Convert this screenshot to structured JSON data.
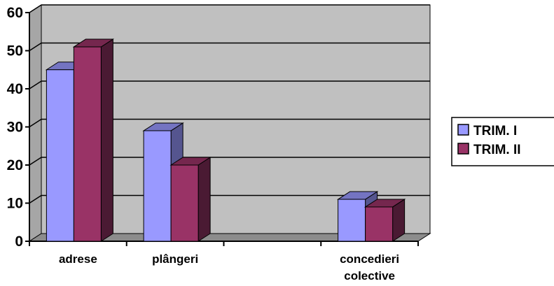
{
  "chart_data": {
    "type": "bar",
    "categories": [
      "adrese",
      "plângeri",
      "",
      "concedieri colective"
    ],
    "series": [
      {
        "name": "TRIM. I",
        "values": [
          45,
          29,
          null,
          11
        ]
      },
      {
        "name": "TRIM. II",
        "values": [
          51,
          20,
          null,
          9
        ]
      }
    ],
    "ylim": [
      0,
      60
    ],
    "yticks": [
      0,
      10,
      20,
      30,
      40,
      50,
      60
    ],
    "grid": true,
    "legend": "right",
    "colors": {
      "series": [
        "#9999ff",
        "#993366"
      ],
      "series_top": [
        "#7474c2",
        "#75274e"
      ],
      "series_side": [
        "#55558f",
        "#4a1a33"
      ],
      "wall": "#c0c0c0",
      "floor": "#8c8c8c",
      "axis": "#000000"
    }
  }
}
